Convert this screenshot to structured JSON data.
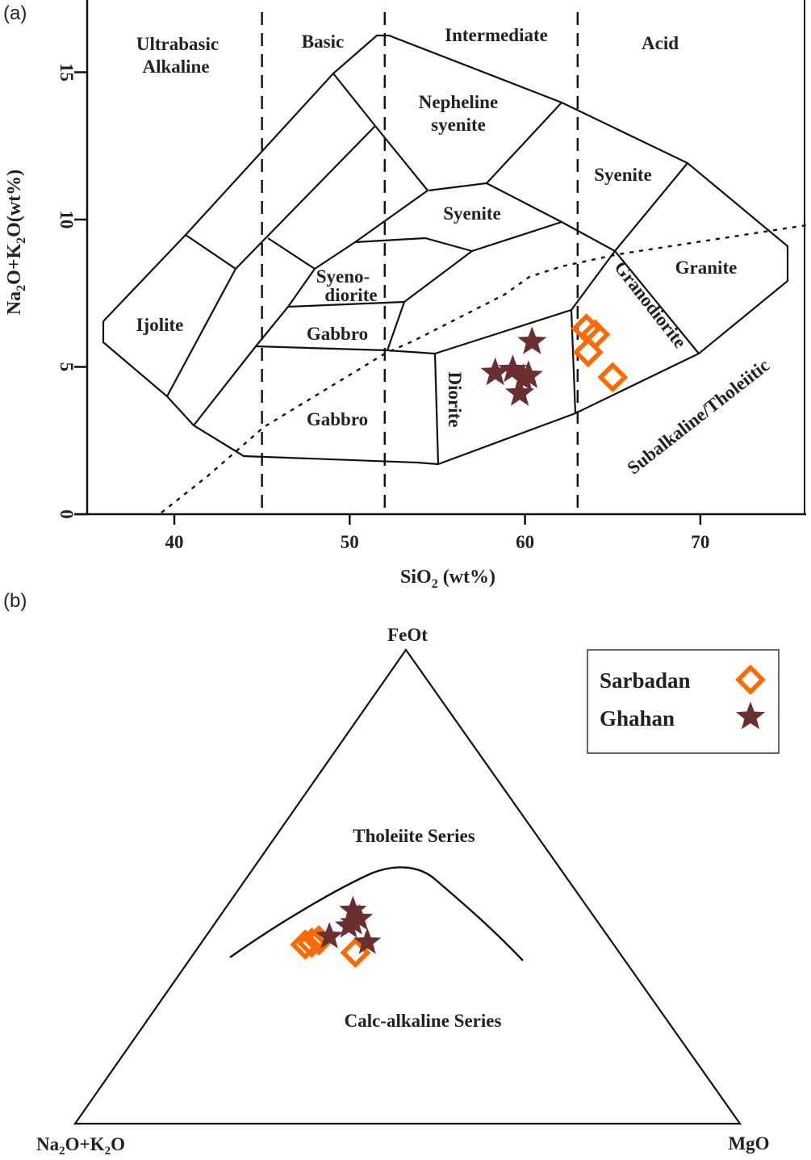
{
  "chart_data": [
    {
      "panel_label": "(a)",
      "type": "scatter",
      "xlabel": {
        "main": "SiO",
        "sub": "2",
        "rest": " (wt%)"
      },
      "ylabel": {
        "a": "Na",
        "a_sub": "2",
        "b": "O+K",
        "b_sub": "2",
        "c": "O(wt%)"
      },
      "xlim": [
        35,
        76
      ],
      "ylim": [
        0,
        17
      ],
      "xticks": [
        "40",
        "50",
        "60",
        "70"
      ],
      "xtick_values": [
        40,
        50,
        60,
        70
      ],
      "yticks": [
        "0",
        "5",
        "10",
        "15"
      ],
      "ytick_values": [
        0,
        5,
        10,
        15
      ],
      "grid": false,
      "silica_divisions": [
        45,
        52,
        63
      ],
      "group_labels": {
        "ultrabasic_1": "Ultrabasic",
        "ultrabasic_2": "Alkaline",
        "basic": "Basic",
        "intermediate": "Intermediate",
        "acid": "Acid"
      },
      "field_labels": {
        "nepheline_1": "Nepheline",
        "nepheline_2": "syenite",
        "syenite_upper": "Syenite",
        "syenite_mid": "Syenite",
        "granite": "Granite",
        "syenodiorite_1": "Syeno-",
        "syenodiorite_2": "diorite",
        "ijolite": "Ijolite",
        "gabbro_upper": "Gabbro",
        "gabbro_lower": "Gabbro",
        "diorite": "Diorite",
        "granodiorite": "Granodiorite",
        "divider": "Subalkaline/Tholeiitic"
      },
      "series": [
        {
          "name": "Sarbadan",
          "marker": "diamond",
          "color": "#ff6a00",
          "x": [
            63.5,
            64.0,
            63.6,
            65.0
          ],
          "y": [
            6.3,
            6.1,
            5.5,
            4.65
          ]
        },
        {
          "name": "Ghahan",
          "marker": "star",
          "color": "#6b2f30",
          "x": [
            60.4,
            58.3,
            59.3,
            59.9,
            59.7,
            60.2
          ],
          "y": [
            5.85,
            4.8,
            4.9,
            4.6,
            4.1,
            4.7
          ]
        }
      ]
    },
    {
      "panel_label": "(b)",
      "type": "scatter",
      "subtype": "ternary",
      "apex_top": "FeOt",
      "apex_left": {
        "a": "Na",
        "a_sub": "2",
        "b": "O+K",
        "b_sub": "2",
        "c": "O"
      },
      "apex_right": "MgO",
      "region_labels": {
        "upper": "Tholeiite Series",
        "lower": "Calc-alkaline Series"
      },
      "legend": {
        "position": "top-right",
        "entries": [
          "Sarbadan",
          "Ghahan"
        ]
      },
      "series": [
        {
          "name": "Sarbadan",
          "marker": "diamond",
          "color": "#ff6a00",
          "FeOt": [
            0.378,
            0.382,
            0.387,
            0.361
          ],
          "MgO": [
            0.158,
            0.166,
            0.174,
            0.242
          ],
          "Na2O+K2O": [
            0.464,
            0.452,
            0.439,
            0.397
          ]
        },
        {
          "name": "Ghahan",
          "marker": "star",
          "color": "#6b2f30",
          "FeOt": [
            0.45,
            0.424,
            0.395,
            0.383,
            0.417,
            0.433
          ],
          "MgO": [
            0.194,
            0.208,
            0.186,
            0.249,
            0.204,
            0.212
          ],
          "Na2O+K2O": [
            0.356,
            0.368,
            0.419,
            0.368,
            0.379,
            0.355
          ]
        }
      ]
    }
  ]
}
